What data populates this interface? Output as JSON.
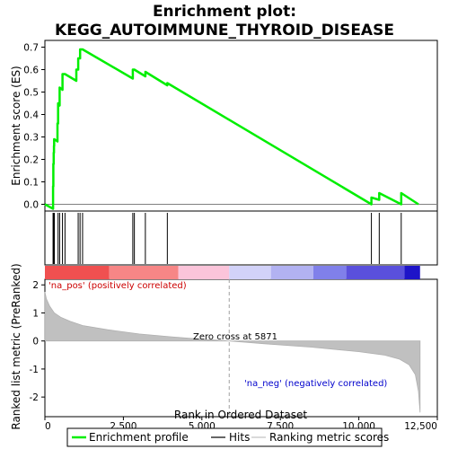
{
  "chart_data": {
    "type": "line",
    "title_line1": "Enrichment plot:",
    "title_line2": "KEGG_AUTOIMMUNE_THYROID_DISEASE",
    "es_panel": {
      "ylabel": "Enrichment score (ES)",
      "ylim": [
        -0.03,
        0.73
      ],
      "yticks": [
        "0.0",
        "0.1",
        "0.2",
        "0.3",
        "0.4",
        "0.5",
        "0.6",
        "0.7"
      ],
      "ytick_values": [
        0.0,
        0.1,
        0.2,
        0.3,
        0.4,
        0.5,
        0.6,
        0.7
      ],
      "series": [
        {
          "name": "Enrichment profile",
          "color": "#00ee00",
          "x": [
            0,
            260,
            260,
            270,
            270,
            280,
            280,
            290,
            290,
            295,
            295,
            300,
            300,
            400,
            400,
            420,
            420,
            470,
            470,
            560,
            560,
            640,
            640,
            1000,
            1000,
            1060,
            1060,
            1120,
            1120,
            1200,
            1200,
            2800,
            2800,
            2850,
            2850,
            3200,
            3200,
            3900,
            3900,
            10400,
            10400,
            10650,
            10650,
            11350,
            11350,
            11900
          ],
          "y": [
            0.0,
            -0.02,
            0.08,
            0.08,
            0.18,
            0.18,
            0.23,
            0.23,
            0.26,
            0.26,
            0.29,
            0.29,
            0.29,
            0.28,
            0.36,
            0.36,
            0.45,
            0.44,
            0.52,
            0.51,
            0.58,
            0.58,
            0.58,
            0.55,
            0.6,
            0.6,
            0.65,
            0.65,
            0.69,
            0.69,
            0.69,
            0.56,
            0.6,
            0.6,
            0.6,
            0.57,
            0.59,
            0.53,
            0.54,
            0.0,
            0.03,
            0.02,
            0.05,
            0.0,
            0.05,
            0.0
          ]
        }
      ]
    },
    "hits": {
      "name": "Hits",
      "positions": [
        260,
        270,
        280,
        290,
        295,
        300,
        420,
        470,
        560,
        640,
        1060,
        1120,
        1200,
        2800,
        2850,
        3200,
        3900,
        10400,
        10650,
        11350
      ]
    },
    "rank_panel": {
      "ylabel": "Ranked list metric (PreRanked)",
      "xlabel": "Rank in Ordered Dataset",
      "xlim": [
        0,
        12500
      ],
      "ylim": [
        -2.7,
        2.2
      ],
      "xticks": [
        "0",
        "2,500",
        "5,000",
        "7,500",
        "10,000",
        "12,500"
      ],
      "xtick_values": [
        0,
        2500,
        5000,
        7500,
        10000,
        12500
      ],
      "yticks": [
        "2",
        "1",
        "0",
        "-1",
        "-2"
      ],
      "ytick_values": [
        2,
        1,
        0,
        -1,
        -2
      ],
      "series": [
        {
          "name": "Ranking metric scores",
          "color": "#c0c0c0",
          "x": [
            0,
            50,
            150,
            300,
            500,
            800,
            1200,
            2000,
            3000,
            4000,
            5000,
            5871,
            7000,
            8500,
            10000,
            10800,
            11300,
            11600,
            11800,
            11900,
            11950
          ],
          "y": [
            1.75,
            1.5,
            1.25,
            1.0,
            0.85,
            0.7,
            0.55,
            0.4,
            0.25,
            0.15,
            0.06,
            0.0,
            -0.1,
            -0.22,
            -0.38,
            -0.5,
            -0.65,
            -0.85,
            -1.2,
            -1.8,
            -2.55
          ]
        }
      ],
      "zero_cross_label": "Zero cross at 5871",
      "zero_cross_x": 5871,
      "pos_label": "'na_pos' (positively correlated)",
      "neg_label": "'na_neg' (negatively correlated)",
      "pos_color": "#cc0000",
      "neg_color": "#0000cc"
    },
    "color_bar": {
      "segments": [
        {
          "from": 0,
          "to": 2050,
          "color": "#f05050"
        },
        {
          "from": 2050,
          "to": 4250,
          "color": "#f78686"
        },
        {
          "from": 4250,
          "to": 5871,
          "color": "#fbc4da"
        },
        {
          "from": 5871,
          "to": 7200,
          "color": "#d2d2f8"
        },
        {
          "from": 7200,
          "to": 8550,
          "color": "#b2b2f2"
        },
        {
          "from": 8550,
          "to": 9600,
          "color": "#8080ea"
        },
        {
          "from": 9600,
          "to": 11450,
          "color": "#5a50dc"
        },
        {
          "from": 11450,
          "to": 11950,
          "color": "#1e14c8"
        }
      ]
    },
    "legend": {
      "items": [
        {
          "label": "Enrichment profile",
          "color": "#00ee00"
        },
        {
          "label": "Hits",
          "color": "#000000"
        },
        {
          "label": "Ranking metric scores",
          "color": "#c0c0c0"
        }
      ]
    }
  }
}
